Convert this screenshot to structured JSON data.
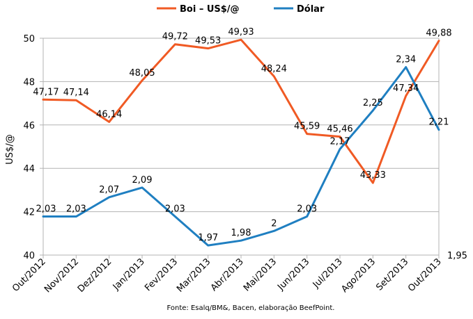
{
  "chart_data": {
    "type": "line",
    "categories": [
      "Out/2012",
      "Nov/2012",
      "Dez/2012",
      "Jan/2013",
      "Fev/2013",
      "Mar/2013",
      "Abr/2013",
      "Mai/2013",
      "Jun/2013",
      "Jul/2013",
      "Ago/2013",
      "Set/2013",
      "Out/2013"
    ],
    "series": [
      {
        "name": "Boi – US$/@",
        "axis": "left",
        "color": "#f05a24",
        "values": [
          47.17,
          47.14,
          46.14,
          48.05,
          49.72,
          49.53,
          49.93,
          48.24,
          45.59,
          45.46,
          43.33,
          47.34,
          49.88
        ],
        "labels": [
          "47,17",
          "47,14",
          "46,14",
          "48,05",
          "49,72",
          "49,53",
          "49,93",
          "48,24",
          "45,59",
          "45,46",
          "43,33",
          "47,34",
          "49,88"
        ]
      },
      {
        "name": "Dólar",
        "axis": "right",
        "color": "#1f7fc1",
        "values": [
          2.03,
          2.03,
          2.07,
          2.09,
          2.03,
          1.97,
          1.98,
          2.0,
          2.03,
          2.17,
          2.25,
          2.34,
          2.21
        ],
        "labels": [
          "2,03",
          "2,03",
          "2,07",
          "2,09",
          "2,03",
          "1,97",
          "1,98",
          "2",
          "2,03",
          "2,17",
          "2,25",
          "2,34",
          "2,21"
        ]
      }
    ],
    "ylabel": "US$/@",
    "ylim": [
      40,
      50
    ],
    "y_ticks": [
      "40",
      "42",
      "44",
      "46",
      "48",
      "50"
    ],
    "y2lim": [
      1.95,
      2.4
    ],
    "y2_ticks": [
      "1,95"
    ],
    "grid": true,
    "legend": "top-center",
    "source": "Fonte: Esalq/BM&, Bacen, elaboração BeefPoint."
  }
}
